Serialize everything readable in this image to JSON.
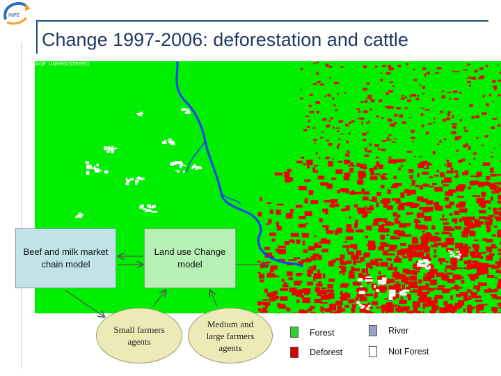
{
  "header": {
    "title": "Change 1997-2006: deforestation and cattle",
    "logo_icon": "institution-logo-swirl"
  },
  "map": {
    "watermark": "AGF: UNREGISTERED",
    "colors": {
      "forest": "#00ee00",
      "deforest": "#ee0000",
      "river": "#1a3cff",
      "not_forest": "#ffffff"
    }
  },
  "diagram": {
    "boxes": {
      "beef": "Beef and milk market chain model",
      "landuse": "Land use Change model"
    },
    "agents": {
      "small": "Small farmers agents",
      "medium": "Medium and large farmers agents"
    }
  },
  "legend": {
    "items": [
      {
        "label": "Forest",
        "color": "#2ed12e"
      },
      {
        "label": "River",
        "color": "#9ea2c8"
      },
      {
        "label": "Deforest",
        "color": "#d40000"
      },
      {
        "label": "Not Forest",
        "color": "#ffffff"
      }
    ]
  }
}
